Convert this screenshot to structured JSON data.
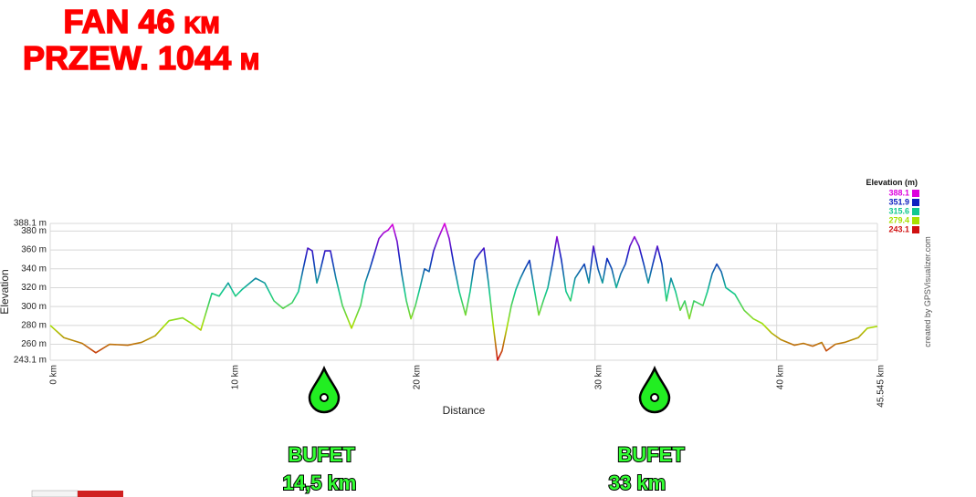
{
  "chart_data": {
    "type": "line",
    "titles": [
      "FAN 46 km",
      "PRZEW. 1044 m"
    ],
    "x_label": "Distance",
    "y_label": "Elevation",
    "credit": "created by GPSVisualizer.com",
    "annotations": [
      "BUFET",
      "14,5 km",
      "BUFET",
      "33 km"
    ],
    "legend_title": "Elevation (m)",
    "legend_values": [
      388.1,
      351.9,
      315.6,
      279.4,
      243.1
    ],
    "legend_colors": [
      "#dd00dd",
      "#1020c0",
      "#10c890",
      "#a8e000",
      "#d01010"
    ],
    "xlim": [
      0,
      45.545
    ],
    "xticks": [
      {
        "value": 0,
        "label": "0 km"
      },
      {
        "value": 10,
        "label": "10 km"
      },
      {
        "value": 20,
        "label": "20 km"
      },
      {
        "value": 30,
        "label": "30 km"
      },
      {
        "value": 40,
        "label": "40 km"
      },
      {
        "value": 45.545,
        "label": "45.545 km"
      }
    ],
    "ylim": [
      243.1,
      388.1
    ],
    "yticks": [
      {
        "value": 243.1,
        "label": "243.1 m"
      },
      {
        "value": 260,
        "label": "260 m"
      },
      {
        "value": 280,
        "label": "280 m"
      },
      {
        "value": 300,
        "label": "300 m"
      },
      {
        "value": 320,
        "label": "320 m"
      },
      {
        "value": 340,
        "label": "340 m"
      },
      {
        "value": 360,
        "label": "360 m"
      },
      {
        "value": 380,
        "label": "380 m"
      },
      {
        "value": 388.1,
        "label": "388.1 m"
      }
    ],
    "grid": true,
    "x": [
      0,
      0.75,
      1.76,
      2.51,
      3.27,
      4.27,
      5.03,
      5.78,
      6.54,
      7.29,
      7.79,
      8.29,
      8.9,
      9.3,
      9.8,
      10.2,
      10.56,
      11.31,
      11.81,
      12.32,
      12.82,
      13.32,
      13.67,
      13.93,
      14.18,
      14.43,
      14.68,
      14.83,
      15.13,
      15.43,
      15.73,
      16.09,
      16.59,
      17.09,
      17.34,
      17.6,
      17.85,
      18.1,
      18.35,
      18.6,
      18.85,
      19.1,
      19.35,
      19.61,
      19.86,
      20.11,
      20.36,
      20.61,
      20.86,
      21.11,
      21.36,
      21.72,
      21.97,
      22.22,
      22.52,
      22.87,
      23.12,
      23.38,
      23.63,
      23.88,
      24.13,
      24.38,
      24.63,
      24.88,
      25.14,
      25.39,
      25.64,
      25.89,
      26.14,
      26.39,
      26.64,
      26.9,
      27.15,
      27.4,
      27.65,
      27.9,
      28.15,
      28.4,
      28.65,
      28.9,
      29.41,
      29.66,
      29.91,
      30.16,
      30.41,
      30.66,
      30.92,
      31.17,
      31.42,
      31.67,
      31.92,
      32.17,
      32.42,
      32.68,
      32.93,
      33.18,
      33.43,
      33.68,
      33.93,
      34.18,
      34.43,
      34.69,
      34.94,
      35.19,
      35.44,
      35.94,
      36.19,
      36.45,
      36.7,
      36.95,
      37.2,
      37.7,
      38.21,
      38.71,
      39.21,
      39.71,
      40.22,
      40.97,
      41.47,
      41.98,
      42.48,
      42.73,
      43.23,
      43.74,
      44.49,
      44.99,
      45.545
    ],
    "values": [
      280,
      267,
      261,
      251,
      260,
      259,
      262,
      269,
      285,
      288,
      282,
      275,
      314,
      311,
      325,
      311,
      318,
      330,
      325,
      306,
      298,
      304,
      316,
      340,
      362,
      359,
      325,
      335,
      359,
      359,
      330,
      301,
      277,
      301,
      325,
      340,
      356,
      372,
      378,
      381,
      387,
      369,
      335,
      306,
      287,
      301,
      320,
      340,
      337,
      359,
      372,
      388,
      372,
      345,
      316,
      291,
      316,
      349,
      356,
      362,
      325,
      282,
      243.1,
      253,
      277,
      301,
      318,
      330,
      340,
      349,
      320,
      291,
      306,
      320,
      345,
      374,
      349,
      316,
      306,
      330,
      345,
      325,
      364,
      340,
      325,
      351,
      340,
      320,
      335,
      345,
      364,
      374,
      364,
      345,
      325,
      345,
      364,
      345,
      306,
      330,
      316,
      296,
      306,
      287,
      306,
      301,
      316,
      335,
      345,
      337,
      320,
      313,
      296,
      287,
      282,
      272,
      265,
      259,
      261,
      258,
      262,
      253,
      260,
      262,
      267,
      277,
      279
    ]
  }
}
